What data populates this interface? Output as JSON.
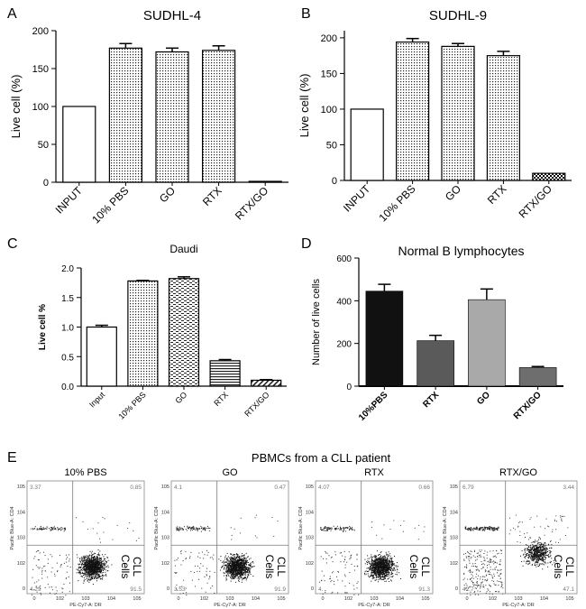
{
  "figure": {
    "panel_e_title": "PBMCs from a CLL patient"
  },
  "chart_data": [
    {
      "panel": "A",
      "type": "bar",
      "title": "SUDHL-4",
      "ylabel": "Live cell (%)",
      "xlabel": "",
      "categories": [
        "INPUT",
        "10% PBS",
        "GO",
        "RTX",
        "RTX/GO"
      ],
      "values": [
        100,
        177,
        172,
        174,
        1
      ],
      "errors": [
        0,
        6,
        5,
        6,
        0
      ],
      "ylim": [
        0,
        200
      ],
      "yticks": [
        0,
        50,
        100,
        150,
        200
      ],
      "ytick_labels": [
        "0",
        "50",
        "100",
        "150",
        "200"
      ],
      "fills": [
        "white",
        "dots",
        "dots",
        "dots",
        "dots"
      ]
    },
    {
      "panel": "B",
      "type": "bar",
      "title": "SUDHL-9",
      "ylabel": "Live cell (%)",
      "xlabel": "",
      "categories": [
        "INPUT",
        "10% PBS",
        "GO",
        "RTX",
        "RTX/GO"
      ],
      "values": [
        100,
        194,
        188,
        175,
        10
      ],
      "errors": [
        0,
        5,
        4,
        6,
        0
      ],
      "ylim": [
        0,
        210
      ],
      "yticks": [
        0,
        50,
        100,
        150,
        200
      ],
      "ytick_labels": [
        "0",
        "50",
        "100",
        "150",
        "200"
      ],
      "fills": [
        "white",
        "dots",
        "dots",
        "dots",
        "checker"
      ]
    },
    {
      "panel": "C",
      "type": "bar",
      "title": "Daudi",
      "ylabel": "Live cell %",
      "xlabel": "",
      "categories": [
        "Input",
        "10% PBS",
        "GO",
        "RTX",
        "RTX/GO"
      ],
      "values": [
        1.0,
        1.78,
        1.82,
        0.43,
        0.1
      ],
      "errors": [
        0.03,
        0.01,
        0.03,
        0.02,
        0.01
      ],
      "ylim": [
        0,
        2.0
      ],
      "yticks": [
        0,
        0.5,
        1.0,
        1.5,
        2.0
      ],
      "ytick_labels": [
        "0.0",
        "0.5",
        "1.0",
        "1.5",
        "2.0"
      ],
      "fills": [
        "white",
        "dots",
        "dashes",
        "hlines",
        "diag"
      ]
    },
    {
      "panel": "D",
      "type": "bar",
      "title": "Normal B lymphocytes",
      "ylabel": "Number of live cells",
      "xlabel": "",
      "categories": [
        "10%PBS",
        "RTX",
        "GO",
        "RTX/GO"
      ],
      "values": [
        445,
        213,
        405,
        87
      ],
      "errors": [
        32,
        25,
        50,
        5
      ],
      "ylim": [
        0,
        600
      ],
      "yticks": [
        0,
        200,
        400,
        600
      ],
      "ytick_labels": [
        "0",
        "200",
        "400",
        "600"
      ],
      "fills": [
        "#111111",
        "#5a5a5a",
        "#a9a9a9",
        "#6e6e6e"
      ]
    },
    {
      "panel": "E",
      "type": "scatter",
      "subtype": "flow-cytometry-quadrant",
      "title": "PBMCs from a CLL patient",
      "xlabel": "PE-Cy7-A: DR",
      "ylabel": "Pacific Blue-A: CD4",
      "gate_label": "CLL Cells",
      "axis_tick_labels_x": [
        "0",
        "10^2",
        "10^3",
        "10^4",
        "10^5"
      ],
      "axis_tick_labels_y": [
        "0",
        "10^2",
        "10^3",
        "10^4",
        "10^5"
      ],
      "plots": [
        {
          "label": "10% PBS",
          "quadrants": {
            "UL": "3.37",
            "UR": "0.85",
            "LL": "4.29",
            "LR": "91.5"
          }
        },
        {
          "label": "GO",
          "quadrants": {
            "UL": "4.1",
            "UR": "0.47",
            "LL": "3.53",
            "LR": "91.9"
          }
        },
        {
          "label": "RTX",
          "quadrants": {
            "UL": "4.07",
            "UR": "0.66",
            "LL": "4.",
            "LR": "91.3"
          }
        },
        {
          "label": "RTX/GO",
          "quadrants": {
            "UL": "6.79",
            "UR": "3.44",
            "LL": "42.7",
            "LR": "47.1"
          }
        }
      ]
    }
  ]
}
